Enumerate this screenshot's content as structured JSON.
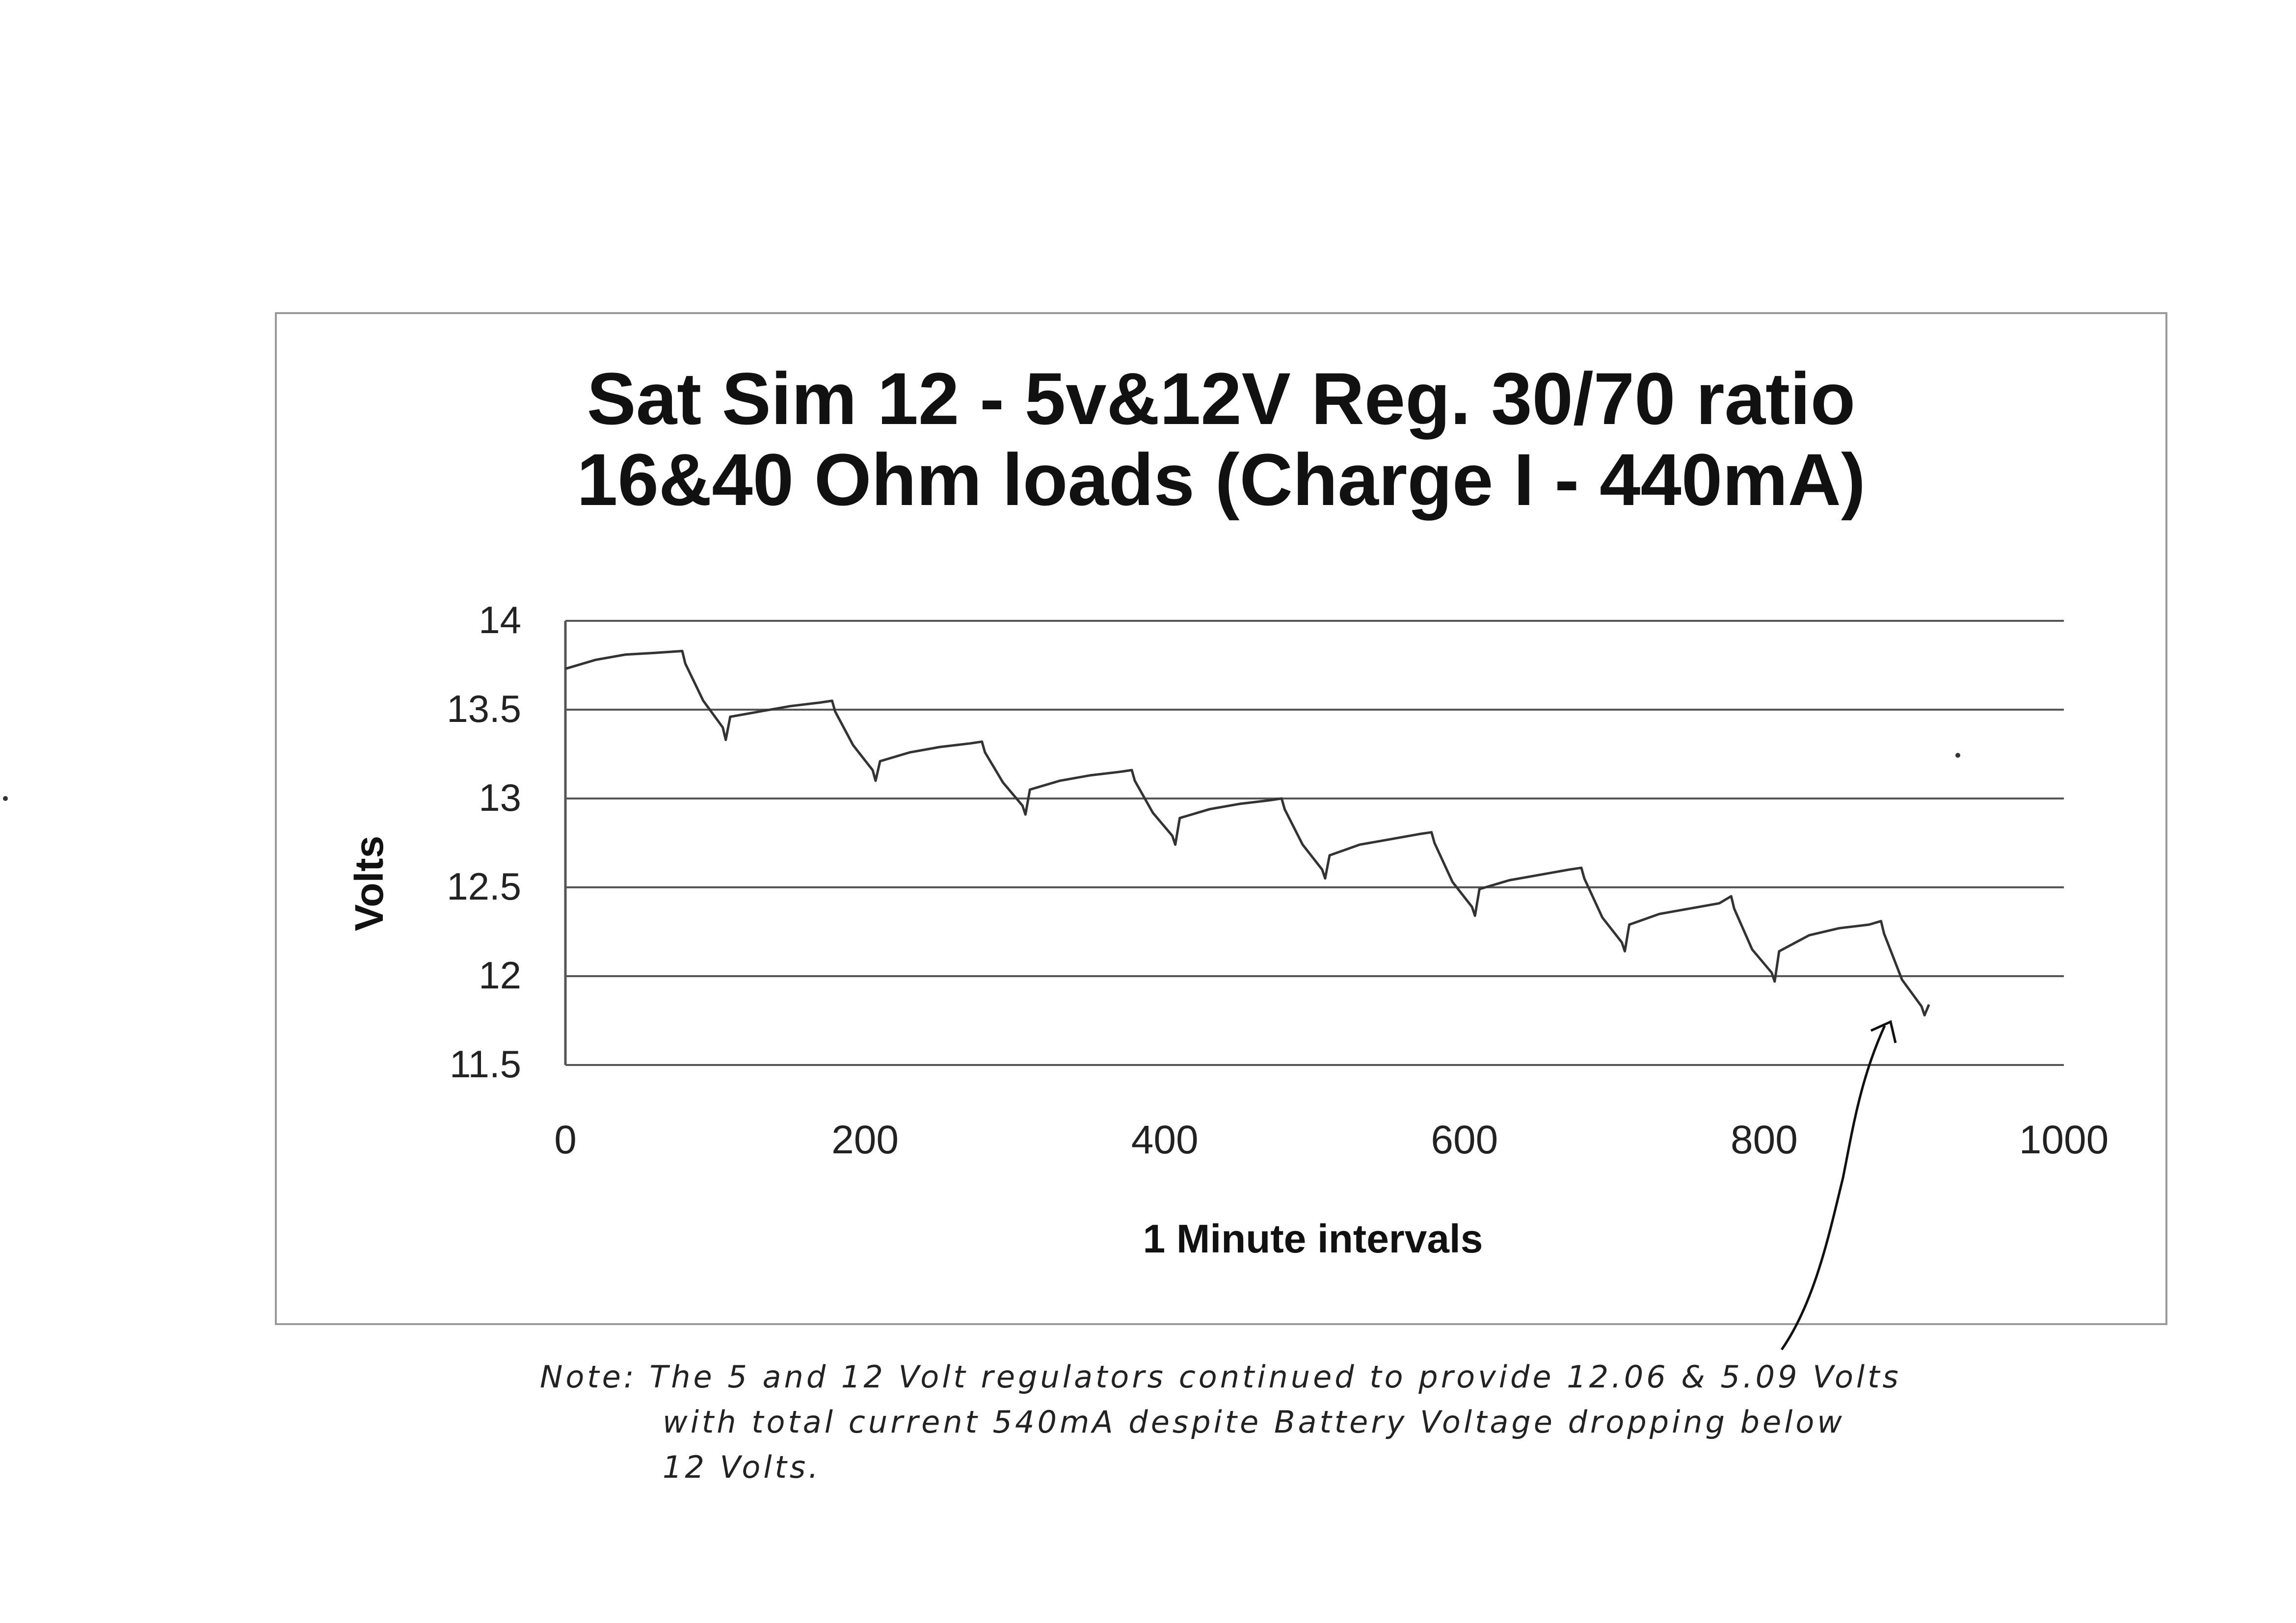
{
  "chart_data": {
    "type": "line",
    "title_lines": [
      "Sat Sim 12 - 5v&12V Reg. 30/70 ratio",
      "16&40 Ohm loads (Charge I - 440mA)"
    ],
    "xlabel": "1 Minute intervals",
    "ylabel": "Volts",
    "xlim": [
      0,
      1000
    ],
    "ylim": [
      11.5,
      14
    ],
    "xticks": [
      "0",
      "200",
      "400",
      "600",
      "800",
      "1000"
    ],
    "yticks": [
      "14",
      "13.5",
      "13",
      "12.5",
      "12",
      "11.5"
    ],
    "grid": true,
    "series": [
      {
        "values": [
          [
            0,
            13.73
          ],
          [
            20,
            13.78
          ],
          [
            40,
            13.81
          ],
          [
            60,
            13.82
          ],
          [
            78,
            13.83
          ],
          [
            80,
            13.76
          ],
          [
            92,
            13.55
          ],
          [
            105,
            13.4
          ],
          [
            107,
            13.33
          ],
          [
            110,
            13.46
          ],
          [
            130,
            13.49
          ],
          [
            150,
            13.52
          ],
          [
            170,
            13.54
          ],
          [
            178,
            13.55
          ],
          [
            180,
            13.49
          ],
          [
            192,
            13.3
          ],
          [
            205,
            13.16
          ],
          [
            207,
            13.1
          ],
          [
            210,
            13.21
          ],
          [
            230,
            13.26
          ],
          [
            250,
            13.29
          ],
          [
            270,
            13.31
          ],
          [
            278,
            13.32
          ],
          [
            280,
            13.26
          ],
          [
            292,
            13.09
          ],
          [
            305,
            12.96
          ],
          [
            307,
            12.91
          ],
          [
            310,
            13.05
          ],
          [
            330,
            13.1
          ],
          [
            350,
            13.13
          ],
          [
            370,
            13.15
          ],
          [
            378,
            13.16
          ],
          [
            380,
            13.1
          ],
          [
            392,
            12.92
          ],
          [
            405,
            12.79
          ],
          [
            407,
            12.74
          ],
          [
            410,
            12.89
          ],
          [
            430,
            12.94
          ],
          [
            450,
            12.97
          ],
          [
            470,
            12.99
          ],
          [
            478,
            13.0
          ],
          [
            480,
            12.94
          ],
          [
            492,
            12.74
          ],
          [
            505,
            12.6
          ],
          [
            507,
            12.55
          ],
          [
            510,
            12.68
          ],
          [
            530,
            12.74
          ],
          [
            550,
            12.77
          ],
          [
            570,
            12.8
          ],
          [
            578,
            12.81
          ],
          [
            580,
            12.75
          ],
          [
            592,
            12.53
          ],
          [
            605,
            12.39
          ],
          [
            607,
            12.34
          ],
          [
            610,
            12.49
          ],
          [
            630,
            12.54
          ],
          [
            650,
            12.57
          ],
          [
            670,
            12.6
          ],
          [
            678,
            12.61
          ],
          [
            680,
            12.55
          ],
          [
            692,
            12.33
          ],
          [
            705,
            12.19
          ],
          [
            707,
            12.14
          ],
          [
            710,
            12.29
          ],
          [
            730,
            12.35
          ],
          [
            750,
            12.38
          ],
          [
            770,
            12.41
          ],
          [
            778,
            12.45
          ],
          [
            780,
            12.38
          ],
          [
            792,
            12.15
          ],
          [
            805,
            12.02
          ],
          [
            807,
            11.97
          ],
          [
            810,
            12.14
          ],
          [
            830,
            12.23
          ],
          [
            850,
            12.27
          ],
          [
            870,
            12.29
          ],
          [
            878,
            12.31
          ],
          [
            880,
            12.24
          ],
          [
            892,
            11.98
          ],
          [
            905,
            11.83
          ],
          [
            907,
            11.78
          ],
          [
            910,
            11.84
          ]
        ]
      }
    ]
  },
  "note": {
    "lines": [
      "Note: The 5 and 12 Volt regulators continued to provide 12.06 & 5.09 Volts",
      "with total current 540mA despite Battery Voltage dropping below",
      "12 Volts."
    ]
  }
}
